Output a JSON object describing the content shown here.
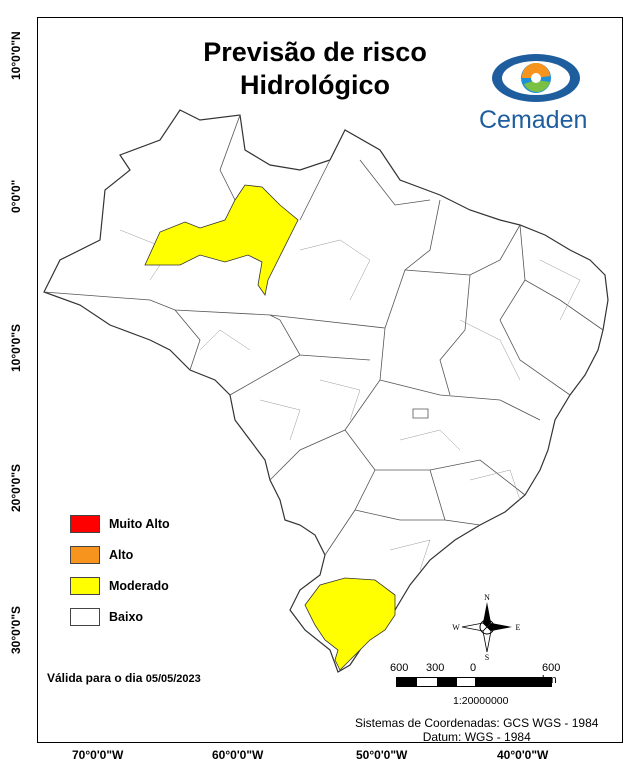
{
  "map": {
    "title_line1": "Previsão de risco",
    "title_line2": "Hidrológico",
    "logo_text": "Cemaden",
    "lat_ticks": [
      "10°0'0\"N",
      "0°0'0\"",
      "10°0'0\"S",
      "20°0'0\"S",
      "30°0'0\"S"
    ],
    "lon_ticks": [
      "70°0'0\"W",
      "60°0'0\"W",
      "50°0'0\"W",
      "40°0'0\"W"
    ],
    "legend": [
      {
        "label": "Muito Alto",
        "color": "#ff0000"
      },
      {
        "label": "Alto",
        "color": "#f7941d"
      },
      {
        "label": "Moderado",
        "color": "#ffff00"
      },
      {
        "label": "Baixo",
        "color": "#ffffff"
      }
    ],
    "validity_label": "Válida para o dia",
    "validity_date": "05/05/2023",
    "scale_labels": [
      "600",
      "300",
      "0",
      "600 km"
    ],
    "scale_ratio": "1:20000000",
    "crs_line1": "Sistemas de Coordenadas: GCS WGS - 1984",
    "crs_line2": "Datum: WGS - 1984",
    "compass": {
      "n": "N",
      "s": "S",
      "e": "E",
      "w": "W"
    },
    "risk_regions": [
      {
        "region": "Amazonas centro-norte",
        "level": "Moderado"
      },
      {
        "region": "Rio Grande do Sul",
        "level": "Moderado"
      }
    ]
  }
}
